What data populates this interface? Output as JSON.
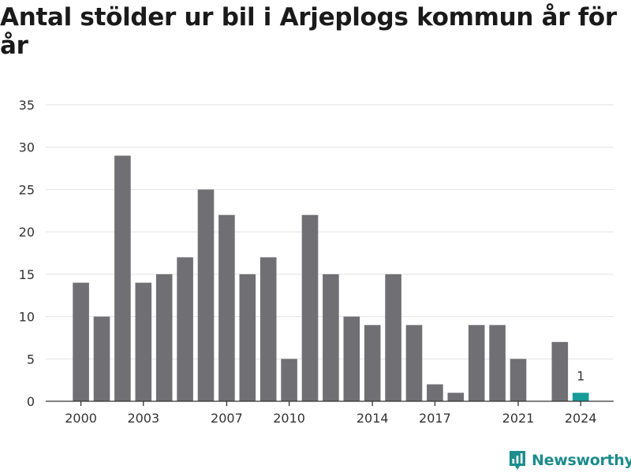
{
  "title": "Antal stölder ur bil i Arjeplogs kommun år för år",
  "brand": {
    "name": "Newsworthy",
    "color": "#1d8c8c"
  },
  "colors": {
    "bar": "#706f74",
    "highlight": "#169c98",
    "grid": "#e2e2e2",
    "axis": "#333333",
    "text": "#333333"
  },
  "chart_data": {
    "type": "bar",
    "title": "Antal stölder ur bil i Arjeplogs kommun år för år",
    "xlabel": "",
    "ylabel": "",
    "ylim": [
      0,
      35
    ],
    "yticks": [
      0,
      5,
      10,
      15,
      20,
      25,
      30,
      35
    ],
    "grid": true,
    "categories": [
      2000,
      2001,
      2002,
      2003,
      2004,
      2005,
      2006,
      2007,
      2008,
      2009,
      2010,
      2011,
      2012,
      2013,
      2014,
      2015,
      2016,
      2017,
      2018,
      2019,
      2020,
      2021,
      2022,
      2023,
      2024
    ],
    "values": [
      14,
      10,
      29,
      14,
      15,
      17,
      25,
      22,
      15,
      17,
      5,
      22,
      15,
      10,
      9,
      15,
      9,
      2,
      1,
      9,
      9,
      5,
      0,
      7,
      1
    ],
    "xtick_labels": [
      2000,
      2003,
      2007,
      2010,
      2014,
      2017,
      2021,
      2024
    ],
    "highlight": {
      "category": 2024,
      "value": 1,
      "label": "1"
    }
  }
}
